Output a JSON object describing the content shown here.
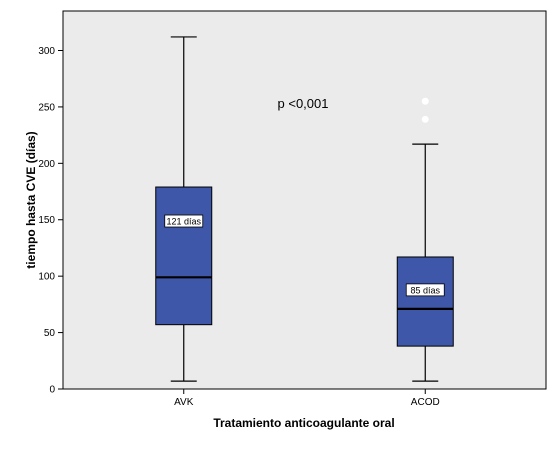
{
  "chart_data": {
    "type": "boxplot",
    "xlabel": "Tratamiento anticoagulante oral",
    "ylabel": "tiempo hasta CVE (días)",
    "ylim": [
      0,
      335
    ],
    "yticks": [
      0,
      50,
      100,
      150,
      200,
      250,
      300
    ],
    "grid": false,
    "annotation": "p <0,001",
    "colors": {
      "plot_background": "#ebebeb",
      "box_fill": "#3f57a8",
      "outlier": "#ffffff"
    },
    "categories": [
      "AVK",
      "ACOD"
    ],
    "boxes": [
      {
        "category": "AVK",
        "min": 7,
        "q1": 57,
        "median": 99,
        "q3": 179,
        "max": 312,
        "outliers": [],
        "label": "121 días"
      },
      {
        "category": "ACOD",
        "min": 7,
        "q1": 38,
        "median": 71,
        "q3": 117,
        "max": 217,
        "outliers": [
          239,
          255
        ],
        "label": "85 días"
      }
    ]
  }
}
